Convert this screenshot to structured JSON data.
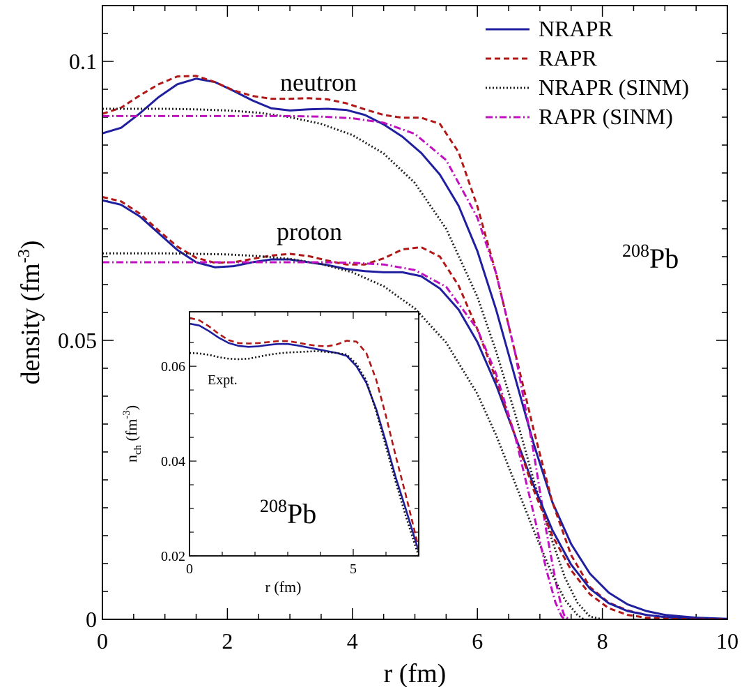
{
  "chart_data": [
    {
      "type": "line",
      "xlabel": "r (fm)",
      "ylabel": "density (fm",
      "ylabel_sup": "-3",
      "ylabel_close": ")",
      "xlim": [
        0,
        10
      ],
      "ylim": [
        0,
        0.11
      ],
      "x_ticks": [
        "0",
        "2",
        "4",
        "6",
        "8",
        "10"
      ],
      "y_ticks": [
        "0",
        "0.05",
        "0.1"
      ],
      "legend_position": "top-right",
      "annotations": {
        "neutron": "neutron",
        "proton": "proton",
        "nucleus_mass": "208",
        "nucleus_symbol": "Pb"
      },
      "series": [
        {
          "name": "NRAPR",
          "color": "#1f1fa0",
          "dash": "solid",
          "group": "neutron",
          "x": [
            0,
            0.3,
            0.6,
            0.9,
            1.2,
            1.5,
            1.8,
            2.1,
            2.4,
            2.7,
            3.0,
            3.3,
            3.6,
            3.9,
            4.2,
            4.5,
            4.8,
            5.1,
            5.4,
            5.7,
            6.0,
            6.3,
            6.6,
            6.9,
            7.2,
            7.5,
            7.8,
            8.1,
            8.4,
            8.7,
            9.0,
            9.5,
            10.0
          ],
          "y": [
            0.0871,
            0.0881,
            0.0907,
            0.0936,
            0.0959,
            0.0969,
            0.0963,
            0.0947,
            0.093,
            0.0916,
            0.0912,
            0.0914,
            0.0915,
            0.0913,
            0.0904,
            0.0887,
            0.0865,
            0.0836,
            0.0797,
            0.0741,
            0.066,
            0.0555,
            0.0435,
            0.0315,
            0.021,
            0.0135,
            0.0082,
            0.0048,
            0.0027,
            0.0015,
            0.0008,
            0.0003,
            0.0001
          ]
        },
        {
          "name": "RAPR",
          "color": "#b01818",
          "dash": "dashed",
          "group": "neutron",
          "x": [
            0,
            0.3,
            0.6,
            0.9,
            1.2,
            1.5,
            1.8,
            2.1,
            2.4,
            2.7,
            3.0,
            3.3,
            3.6,
            3.9,
            4.2,
            4.5,
            4.8,
            5.1,
            5.4,
            5.7,
            6.0,
            6.3,
            6.6,
            6.9,
            7.2,
            7.5,
            7.8,
            8.1,
            8.4,
            8.7,
            9.0,
            9.5,
            10.0
          ],
          "y": [
            0.0906,
            0.0917,
            0.0939,
            0.0959,
            0.0973,
            0.0974,
            0.0963,
            0.0948,
            0.0938,
            0.0933,
            0.0933,
            0.0934,
            0.0932,
            0.0925,
            0.0914,
            0.0904,
            0.0899,
            0.0899,
            0.0888,
            0.0837,
            0.074,
            0.062,
            0.048,
            0.034,
            0.021,
            0.0115,
            0.0058,
            0.003,
            0.0016,
            0.0008,
            0.0004,
            0.0001,
            0.0
          ]
        },
        {
          "name": "NRAPR (SINM)",
          "color": "#222222",
          "dash": "dotted",
          "group": "neutron",
          "x": [
            0,
            0.5,
            1.0,
            1.5,
            2.0,
            2.5,
            3.0,
            3.5,
            4.0,
            4.5,
            5.0,
            5.5,
            6.0,
            6.3,
            6.6,
            6.9,
            7.2,
            7.4,
            7.6,
            7.8,
            8.0
          ],
          "y": [
            0.0915,
            0.0915,
            0.0915,
            0.0914,
            0.0912,
            0.0908,
            0.09,
            0.0888,
            0.0868,
            0.0835,
            0.0782,
            0.07,
            0.0578,
            0.048,
            0.037,
            0.025,
            0.014,
            0.0075,
            0.003,
            0.0005,
            0.0
          ]
        },
        {
          "name": "RAPR (SINM)",
          "color": "#c010c0",
          "dash": "dashdot",
          "group": "neutron",
          "x": [
            0,
            0.5,
            1.0,
            1.5,
            2.0,
            2.5,
            3.0,
            3.5,
            4.0,
            4.5,
            5.0,
            5.5,
            6.0,
            6.3,
            6.6,
            6.9,
            7.1,
            7.25,
            7.35,
            7.4,
            7.5
          ],
          "y": [
            0.0902,
            0.0902,
            0.0902,
            0.0902,
            0.0902,
            0.0902,
            0.0902,
            0.0901,
            0.0898,
            0.089,
            0.087,
            0.0823,
            0.072,
            0.062,
            0.048,
            0.03,
            0.016,
            0.007,
            0.002,
            0.0004,
            0.0
          ]
        },
        {
          "name": "NRAPR",
          "color": "#1f1fa0",
          "dash": "solid",
          "group": "proton",
          "x": [
            0,
            0.3,
            0.6,
            0.9,
            1.2,
            1.5,
            1.8,
            2.1,
            2.4,
            2.7,
            3.0,
            3.3,
            3.6,
            3.9,
            4.2,
            4.5,
            4.8,
            5.1,
            5.4,
            5.7,
            6.0,
            6.3,
            6.6,
            6.9,
            7.2,
            7.5,
            7.8,
            8.1,
            8.4,
            8.7,
            9.0,
            9.5,
            10.0
          ],
          "y": [
            0.0751,
            0.0743,
            0.0722,
            0.0692,
            0.0662,
            0.064,
            0.0631,
            0.0633,
            0.064,
            0.0645,
            0.0645,
            0.064,
            0.0635,
            0.0628,
            0.0624,
            0.0622,
            0.0622,
            0.0615,
            0.0593,
            0.0555,
            0.0497,
            0.042,
            0.033,
            0.024,
            0.016,
            0.0098,
            0.0055,
            0.0029,
            0.0015,
            0.0008,
            0.0004,
            0.0001,
            0.0
          ]
        },
        {
          "name": "RAPR",
          "color": "#b01818",
          "dash": "dashed",
          "group": "proton",
          "x": [
            0,
            0.3,
            0.6,
            0.9,
            1.2,
            1.5,
            1.8,
            2.1,
            2.4,
            2.7,
            3.0,
            3.3,
            3.6,
            3.9,
            4.2,
            4.5,
            4.8,
            5.1,
            5.4,
            5.7,
            6.0,
            6.3,
            6.6,
            6.9,
            7.2,
            7.5,
            7.8,
            8.1,
            8.4,
            8.7,
            9.0,
            9.5,
            10.0
          ],
          "y": [
            0.0757,
            0.0749,
            0.0727,
            0.0697,
            0.0668,
            0.0648,
            0.0639,
            0.064,
            0.0646,
            0.0652,
            0.0655,
            0.0651,
            0.0643,
            0.0636,
            0.0636,
            0.0647,
            0.0663,
            0.0667,
            0.065,
            0.0598,
            0.052,
            0.043,
            0.033,
            0.0232,
            0.015,
            0.0088,
            0.0045,
            0.002,
            0.0008,
            0.0003,
            0.0001,
            0.0,
            0.0
          ]
        },
        {
          "name": "NRAPR (SINM)",
          "color": "#222222",
          "dash": "dotted",
          "group": "proton",
          "x": [
            0,
            0.5,
            1.0,
            1.5,
            2.0,
            2.5,
            3.0,
            3.5,
            4.0,
            4.5,
            5.0,
            5.5,
            6.0,
            6.3,
            6.6,
            6.9,
            7.2,
            7.4,
            7.6,
            7.7
          ],
          "y": [
            0.0656,
            0.0656,
            0.0656,
            0.0655,
            0.0654,
            0.0651,
            0.0646,
            0.0637,
            0.0622,
            0.0597,
            0.0557,
            0.0496,
            0.0404,
            0.033,
            0.0245,
            0.016,
            0.008,
            0.0035,
            0.0008,
            0.0
          ]
        },
        {
          "name": "RAPR (SINM)",
          "color": "#c010c0",
          "dash": "dashdot",
          "group": "proton",
          "x": [
            0,
            0.5,
            1.0,
            1.5,
            2.0,
            2.5,
            3.0,
            3.5,
            4.0,
            4.5,
            5.0,
            5.5,
            6.0,
            6.3,
            6.6,
            6.9,
            7.1,
            7.25,
            7.35,
            7.4
          ],
          "y": [
            0.064,
            0.064,
            0.064,
            0.064,
            0.064,
            0.064,
            0.064,
            0.064,
            0.0639,
            0.0636,
            0.0626,
            0.0596,
            0.052,
            0.044,
            0.033,
            0.019,
            0.009,
            0.003,
            0.0005,
            0.0
          ]
        }
      ]
    },
    {
      "type": "line",
      "xlabel": "r (fm)",
      "ylabel_base": "n",
      "ylabel_sub": "ch",
      "ylabel_unit": " (fm",
      "ylabel_sup": "-3",
      "ylabel_close": ")",
      "xlim": [
        0,
        7
      ],
      "ylim": [
        0.02,
        0.0715
      ],
      "x_ticks": [
        "0",
        "5"
      ],
      "y_ticks": [
        "0.02",
        "0.04",
        "0.06"
      ],
      "annotations": {
        "expt": "Expt.",
        "nucleus_mass": "208",
        "nucleus_symbol": "Pb"
      },
      "series": [
        {
          "name": "NRAPR",
          "color": "#1f1fa0",
          "dash": "solid",
          "x": [
            0,
            0.3,
            0.6,
            0.9,
            1.2,
            1.5,
            1.8,
            2.1,
            2.4,
            2.7,
            3.0,
            3.3,
            3.6,
            3.9,
            4.2,
            4.5,
            4.8,
            5.1,
            5.4,
            5.7,
            6.0,
            6.3,
            6.6,
            6.9,
            7.0
          ],
          "y": [
            0.069,
            0.0686,
            0.0674,
            0.066,
            0.0649,
            0.0643,
            0.0641,
            0.0642,
            0.0645,
            0.0647,
            0.0647,
            0.0644,
            0.064,
            0.0636,
            0.0632,
            0.0628,
            0.0622,
            0.06,
            0.0565,
            0.051,
            0.044,
            0.0365,
            0.03,
            0.0232,
            0.021
          ]
        },
        {
          "name": "RAPR",
          "color": "#b01818",
          "dash": "dashed",
          "x": [
            0,
            0.3,
            0.6,
            0.9,
            1.2,
            1.5,
            1.8,
            2.1,
            2.4,
            2.7,
            3.0,
            3.3,
            3.6,
            3.9,
            4.2,
            4.5,
            4.8,
            5.1,
            5.4,
            5.7,
            6.0,
            6.3,
            6.6,
            6.9,
            7.0
          ],
          "y": [
            0.0702,
            0.0697,
            0.0684,
            0.0668,
            0.0655,
            0.0649,
            0.0648,
            0.0649,
            0.0651,
            0.0653,
            0.0653,
            0.065,
            0.0646,
            0.0643,
            0.0642,
            0.0646,
            0.0654,
            0.0652,
            0.0628,
            0.0572,
            0.0495,
            0.041,
            0.033,
            0.0245,
            0.0215
          ]
        },
        {
          "name": "Expt.",
          "color": "#111111",
          "dash": "dotted",
          "x": [
            0,
            0.3,
            0.6,
            0.9,
            1.2,
            1.5,
            1.8,
            2.1,
            2.4,
            2.7,
            3.0,
            3.3,
            3.6,
            3.9,
            4.2,
            4.5,
            4.8,
            5.1,
            5.4,
            5.7,
            6.0,
            6.3,
            6.6,
            6.9,
            7.0
          ],
          "y": [
            0.0628,
            0.0627,
            0.0624,
            0.0619,
            0.0616,
            0.0615,
            0.0616,
            0.062,
            0.0624,
            0.0627,
            0.0629,
            0.063,
            0.0631,
            0.0632,
            0.063,
            0.0628,
            0.0625,
            0.0605,
            0.057,
            0.0505,
            0.043,
            0.0355,
            0.0285,
            0.022,
            0.02
          ]
        }
      ]
    }
  ]
}
